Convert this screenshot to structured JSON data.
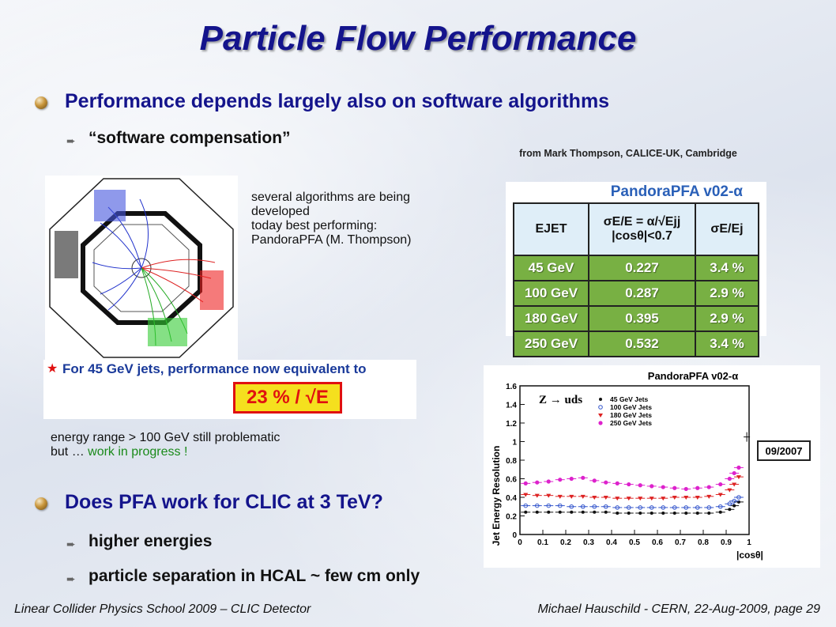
{
  "slide": {
    "title": "Particle Flow Performance",
    "bullet1": "Performance depends largely also on software algorithms",
    "sub1": "“software compensation”",
    "credit": "from Mark Thompson, CALICE-UK, Cambridge",
    "algorithms_note": [
      "several algorithms are being",
      "developed",
      "today best performing:",
      "PandoraPFA (M. Thompson)"
    ],
    "perf_note": "For 45 GeV jets, performance now equivalent to",
    "perf_value": "23 % / √E",
    "energy_note_1": "energy range > 100 GeV still problematic",
    "energy_note_2a": "but … ",
    "energy_note_2b": "work in progress !",
    "bullet2": "Does PFA work for CLIC at 3 TeV?",
    "sub2a": "higher energies",
    "sub2b": "particle separation in HCAL ~ few cm only",
    "footer_left": "Linear Collider Physics School 2009 – CLIC Detector",
    "footer_right": "Michael Hauschild - CERN,  22-Aug-2009,  page 29"
  },
  "table": {
    "title": "PandoraPFA v02-α",
    "headers": [
      "EJET",
      "σE/E = α/√Ejj |cosθ|<0.7",
      "σE/Ej"
    ],
    "rows": [
      [
        "45 GeV",
        "0.227",
        "3.4 %"
      ],
      [
        "100 GeV",
        "0.287",
        "2.9 %"
      ],
      [
        "180 GeV",
        "0.395",
        "2.9 %"
      ],
      [
        "250 GeV",
        "0.532",
        "3.4 %"
      ]
    ]
  },
  "chart_data": {
    "type": "scatter",
    "title": "PandoraPFA v02-α",
    "annotation": "Z → uds",
    "stamp": "09/2007",
    "xlabel": "|cosθ|",
    "ylabel": "Jet Energy Resolution",
    "xlim": [
      0,
      1
    ],
    "ylim": [
      0,
      1.6
    ],
    "xticks": [
      "0",
      "0.1",
      "0.2",
      "0.3",
      "0.4",
      "0.5",
      "0.6",
      "0.7",
      "0.8",
      "0.9",
      "1"
    ],
    "yticks": [
      "0",
      "0.2",
      "0.4",
      "0.6",
      "0.8",
      "1",
      "1.2",
      "1.4",
      "1.6"
    ],
    "x": [
      0.025,
      0.075,
      0.125,
      0.175,
      0.225,
      0.275,
      0.325,
      0.375,
      0.425,
      0.475,
      0.525,
      0.575,
      0.625,
      0.675,
      0.725,
      0.775,
      0.825,
      0.875,
      0.915,
      0.935,
      0.955
    ],
    "series": [
      {
        "name": "45 GeV Jets",
        "color": "#111111",
        "marker": "dot",
        "values": [
          0.24,
          0.24,
          0.24,
          0.24,
          0.24,
          0.24,
          0.24,
          0.24,
          0.23,
          0.23,
          0.23,
          0.23,
          0.23,
          0.23,
          0.23,
          0.23,
          0.23,
          0.24,
          0.27,
          0.31,
          0.35
        ]
      },
      {
        "name": "100 GeV Jets",
        "color": "#3355cc",
        "marker": "circle",
        "values": [
          0.31,
          0.31,
          0.31,
          0.31,
          0.3,
          0.3,
          0.3,
          0.3,
          0.29,
          0.29,
          0.29,
          0.29,
          0.29,
          0.29,
          0.29,
          0.29,
          0.29,
          0.3,
          0.33,
          0.36,
          0.4
        ]
      },
      {
        "name": "180 GeV Jets",
        "color": "#dd2222",
        "marker": "triangle",
        "values": [
          0.43,
          0.42,
          0.42,
          0.41,
          0.41,
          0.41,
          0.4,
          0.4,
          0.39,
          0.39,
          0.39,
          0.39,
          0.39,
          0.4,
          0.4,
          0.4,
          0.41,
          0.43,
          0.48,
          0.54,
          0.62
        ]
      },
      {
        "name": "250 GeV Jets",
        "color": "#dd22cc",
        "marker": "star",
        "values": [
          0.55,
          0.56,
          0.57,
          0.59,
          0.6,
          0.61,
          0.58,
          0.56,
          0.55,
          0.54,
          0.53,
          0.52,
          0.51,
          0.5,
          0.49,
          0.5,
          0.51,
          0.54,
          0.6,
          0.66,
          0.72
        ]
      }
    ],
    "outlier": {
      "x": 0.99,
      "y": 1.05
    }
  },
  "colors": {
    "title": "#14148c",
    "table_row": "#78b043",
    "table_header": "#dfeef8",
    "highlight_box": "#f5e01e",
    "highlight_border": "#e01010",
    "progress_text": "#1a8a1a"
  }
}
